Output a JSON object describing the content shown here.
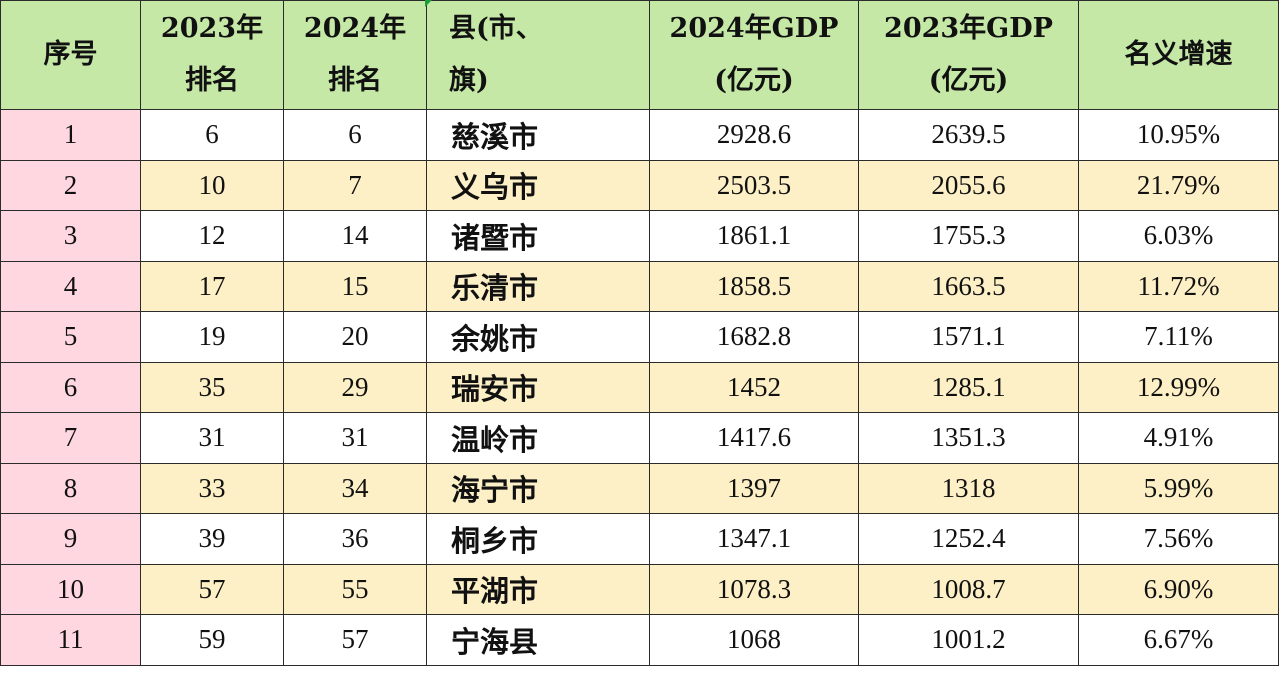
{
  "header": {
    "seq": "序号",
    "rank2023": [
      "2023年",
      "排名"
    ],
    "rank2024": [
      "2024年",
      "排名"
    ],
    "county": [
      "县(市、",
      "旗)"
    ],
    "gdp2024": [
      "2024年GDP",
      "(亿元)"
    ],
    "gdp2023": [
      "2023年GDP",
      "(亿元)"
    ],
    "growth": "名义增速"
  },
  "rows": [
    {
      "seq": "1",
      "rank2023": "6",
      "rank2024": "6",
      "name": "慈溪市",
      "gdp2024": "2928.6",
      "gdp2023": "2639.5",
      "growth": "10.95%"
    },
    {
      "seq": "2",
      "rank2023": "10",
      "rank2024": "7",
      "name": "义乌市",
      "gdp2024": "2503.5",
      "gdp2023": "2055.6",
      "growth": "21.79%"
    },
    {
      "seq": "3",
      "rank2023": "12",
      "rank2024": "14",
      "name": "诸暨市",
      "gdp2024": "1861.1",
      "gdp2023": "1755.3",
      "growth": "6.03%"
    },
    {
      "seq": "4",
      "rank2023": "17",
      "rank2024": "15",
      "name": "乐清市",
      "gdp2024": "1858.5",
      "gdp2023": "1663.5",
      "growth": "11.72%"
    },
    {
      "seq": "5",
      "rank2023": "19",
      "rank2024": "20",
      "name": "余姚市",
      "gdp2024": "1682.8",
      "gdp2023": "1571.1",
      "growth": "7.11%"
    },
    {
      "seq": "6",
      "rank2023": "35",
      "rank2024": "29",
      "name": "瑞安市",
      "gdp2024": "1452",
      "gdp2023": "1285.1",
      "growth": "12.99%"
    },
    {
      "seq": "7",
      "rank2023": "31",
      "rank2024": "31",
      "name": "温岭市",
      "gdp2024": "1417.6",
      "gdp2023": "1351.3",
      "growth": "4.91%"
    },
    {
      "seq": "8",
      "rank2023": "33",
      "rank2024": "34",
      "name": "海宁市",
      "gdp2024": "1397",
      "gdp2023": "1318",
      "growth": "5.99%"
    },
    {
      "seq": "9",
      "rank2023": "39",
      "rank2024": "36",
      "name": "桐乡市",
      "gdp2024": "1347.1",
      "gdp2023": "1252.4",
      "growth": "7.56%"
    },
    {
      "seq": "10",
      "rank2023": "57",
      "rank2024": "55",
      "name": "平湖市",
      "gdp2024": "1078.3",
      "gdp2023": "1008.7",
      "growth": "6.90%"
    },
    {
      "seq": "11",
      "rank2023": "59",
      "rank2024": "57",
      "name": "宁海县",
      "gdp2024": "1068",
      "gdp2023": "1001.2",
      "growth": "6.67%"
    }
  ],
  "colors": {
    "header_bg": "#c5e8a6",
    "index_bg": "#ffd7e0",
    "odd_row_bg": "#ffffff",
    "even_row_bg": "#fdf0c6",
    "cell_marker": "#1e9e3a"
  }
}
